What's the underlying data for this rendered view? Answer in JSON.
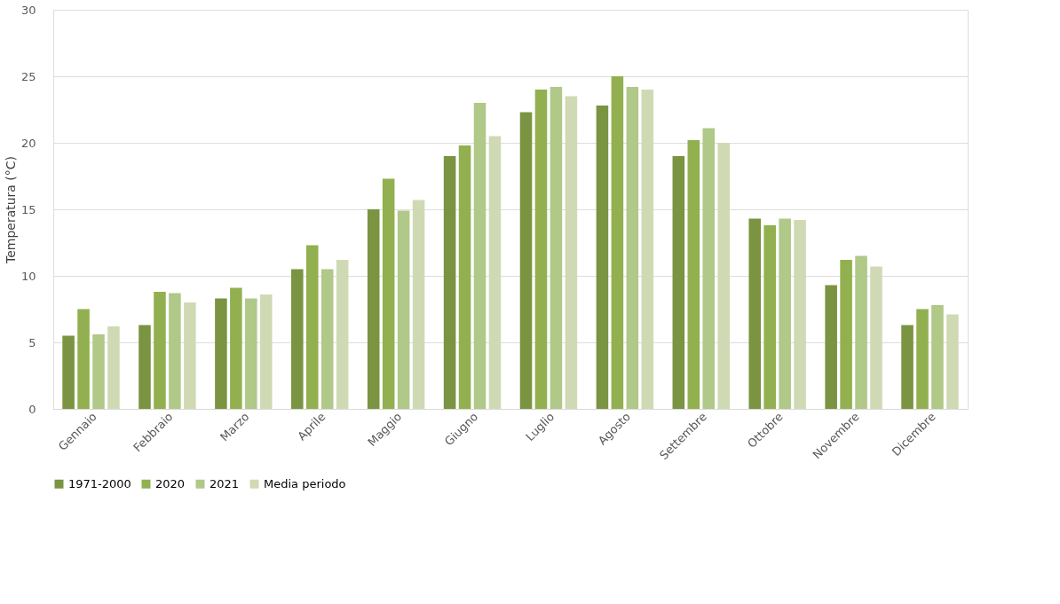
{
  "chart_data": {
    "type": "bar",
    "ylabel": "Temperatura (°C)",
    "categories": [
      "Gennaio",
      "Febbraio",
      "Marzo",
      "Aprile",
      "Maggio",
      "Giugno",
      "Luglio",
      "Agosto",
      "Settembre",
      "Ottobre",
      "Novembre",
      "Dicembre"
    ],
    "series": [
      {
        "name": "1971-2000",
        "color": "#7a9442",
        "values": [
          5.5,
          6.3,
          8.3,
          10.5,
          15.0,
          19.0,
          22.3,
          22.8,
          19.0,
          14.3,
          9.3,
          6.3
        ]
      },
      {
        "name": "2020",
        "color": "#92b050",
        "values": [
          7.5,
          8.8,
          9.1,
          12.3,
          17.3,
          19.8,
          24.0,
          25.0,
          20.2,
          13.8,
          11.2,
          7.5
        ]
      },
      {
        "name": "2021",
        "color": "#b0c888",
        "values": [
          5.6,
          8.7,
          8.3,
          10.5,
          14.9,
          23.0,
          24.2,
          24.2,
          21.1,
          14.3,
          11.5,
          7.8
        ]
      },
      {
        "name": "Media periodo",
        "color": "#cfdab4",
        "values": [
          6.2,
          8.0,
          8.6,
          11.2,
          15.7,
          20.5,
          23.5,
          24.0,
          20.0,
          14.2,
          10.7,
          7.1
        ]
      }
    ],
    "ylim": [
      0,
      30
    ],
    "yticks": [
      0,
      5,
      10,
      15,
      20,
      25,
      30
    ],
    "grid": "y",
    "legend": "bottom"
  }
}
